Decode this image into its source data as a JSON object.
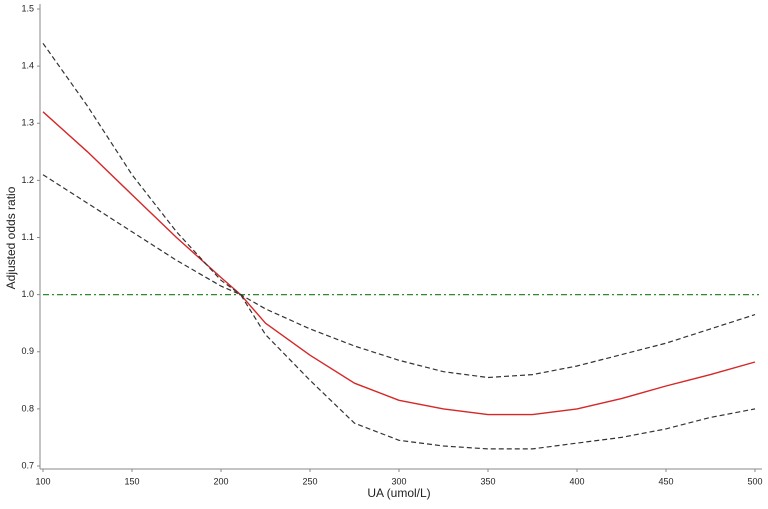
{
  "chart_data": {
    "type": "line",
    "xlabel": "UA (umol/L)",
    "ylabel": "Adjusted odds ratio",
    "x": [
      100,
      125,
      150,
      175,
      200,
      211,
      225,
      250,
      275,
      300,
      325,
      350,
      375,
      400,
      425,
      450,
      475,
      500
    ],
    "series": [
      {
        "color": "#d62728",
        "style": "solid",
        "values": [
          1.32,
          1.25,
          1.175,
          1.1,
          1.03,
          1.0,
          0.95,
          0.894,
          0.845,
          0.815,
          0.8,
          0.79,
          0.79,
          0.8,
          0.818,
          0.84,
          0.86,
          0.882
        ]
      },
      {
        "color": "#333333",
        "style": "dashed",
        "values": [
          1.44,
          1.33,
          1.21,
          1.11,
          1.025,
          1.0,
          0.975,
          0.94,
          0.91,
          0.885,
          0.865,
          0.855,
          0.86,
          0.875,
          0.895,
          0.915,
          0.94,
          0.965
        ]
      },
      {
        "color": "#333333",
        "style": "dashed",
        "values": [
          1.21,
          1.16,
          1.11,
          1.06,
          1.015,
          1.0,
          0.93,
          0.85,
          0.775,
          0.745,
          0.735,
          0.73,
          0.73,
          0.74,
          0.75,
          0.765,
          0.785,
          0.8
        ]
      }
    ],
    "reference_line": {
      "value": 1,
      "color": "#2e8b2e",
      "style": "dashdot"
    },
    "xlim": [
      100,
      500
    ],
    "xticks": [
      100,
      150,
      200,
      250,
      300,
      350,
      400,
      450,
      500
    ],
    "ylim": [
      0.7,
      1.5
    ],
    "yticks": [
      0.7,
      0.8,
      0.9,
      {
        "value": 1,
        "label": "1.0"
      },
      1.1,
      1.2,
      1.3,
      1.4,
      1.5
    ],
    "grid": false
  }
}
